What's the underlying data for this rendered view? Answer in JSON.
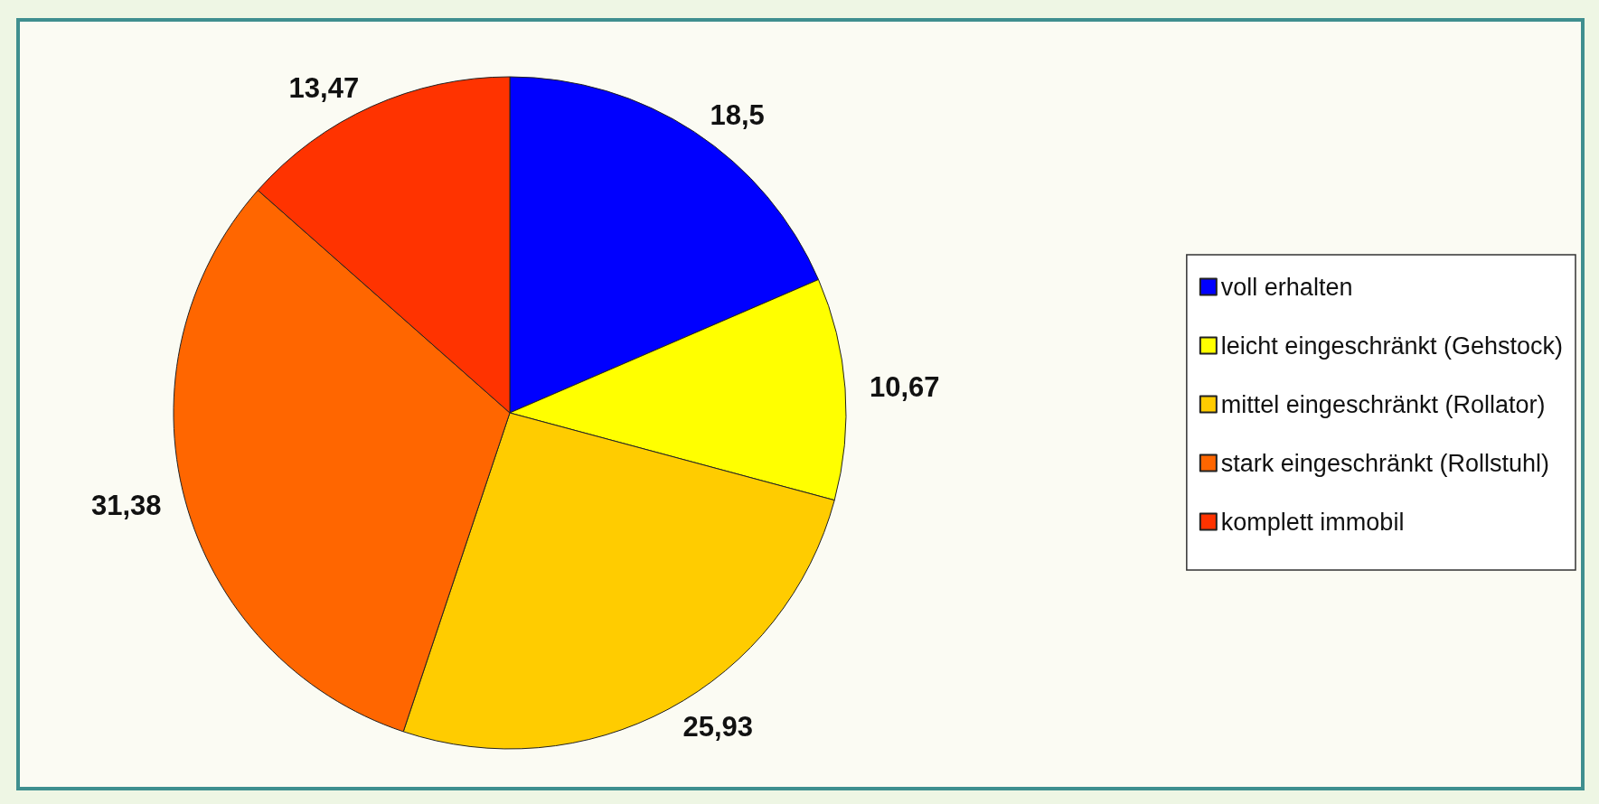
{
  "chart_data": {
    "type": "pie",
    "categories": [
      "voll erhalten",
      "leicht eingeschränkt (Gehstock)",
      "mittel eingeschränkt (Rollator)",
      "stark eingeschränkt (Rollstuhl)",
      "komplett immobil"
    ],
    "values": [
      18.5,
      10.67,
      25.93,
      31.38,
      13.47
    ],
    "value_labels": [
      "18,5",
      "10,67",
      "25,93",
      "31,38",
      "13,47"
    ],
    "colors": [
      "#0000ff",
      "#ffff00",
      "#ffcc00",
      "#ff6600",
      "#ff3300"
    ],
    "legend": "right"
  }
}
